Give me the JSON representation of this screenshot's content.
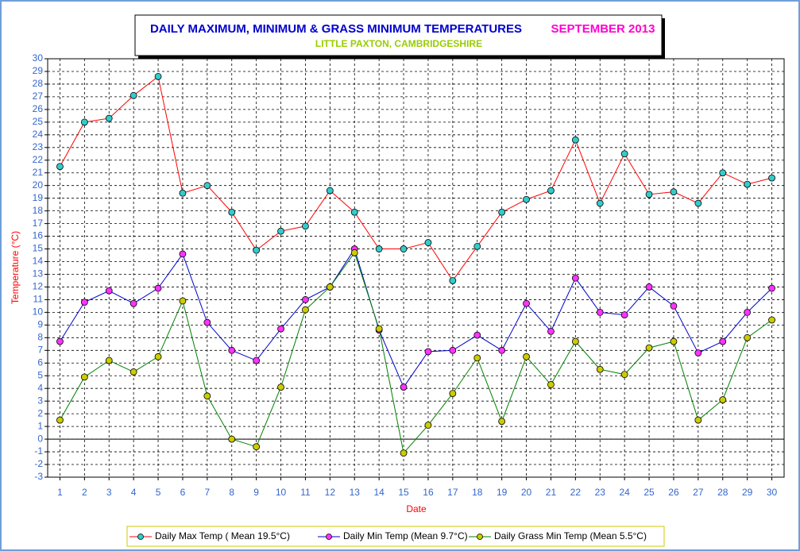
{
  "chart_data": {
    "type": "line",
    "title": "DAILY MAXIMUM, MINIMUM & GRASS MINIMUM TEMPERATURES",
    "period": "SEPTEMBER 2013",
    "subtitle": "LITTLE PAXTON, CAMBRIDGESHIRE",
    "x_label": "Date",
    "y_label": "Temperature (°C)",
    "categories": [
      "1",
      "2",
      "3",
      "4",
      "5",
      "6",
      "7",
      "8",
      "9",
      "10",
      "11",
      "12",
      "13",
      "14",
      "15",
      "16",
      "17",
      "18",
      "19",
      "20",
      "21",
      "22",
      "23",
      "24",
      "25",
      "26",
      "27",
      "28",
      "29",
      "30"
    ],
    "series": [
      {
        "name": "Daily Max Temp ( Mean 19.5°C)",
        "color": "#ff0000",
        "marker_color": "#33cccc",
        "values": [
          21.5,
          25,
          25.3,
          27.1,
          28.6,
          19.4,
          20,
          17.9,
          14.9,
          16.4,
          16.8,
          19.6,
          17.9,
          15,
          15,
          15.5,
          12.5,
          15.2,
          17.9,
          18.9,
          19.6,
          23.6,
          18.6,
          22.5,
          19.3,
          19.5,
          18.6,
          21,
          20.1,
          20.6
        ]
      },
      {
        "name": "Daily Min Temp (Mean 9.7°C)",
        "color": "#0000cc",
        "marker_color": "#ff33ff",
        "values": [
          7.7,
          10.8,
          11.7,
          10.7,
          11.9,
          14.6,
          9.2,
          7,
          6.2,
          8.7,
          11,
          12,
          15,
          8.6,
          4.1,
          6.9,
          7,
          8.2,
          7,
          10.7,
          8.5,
          12.7,
          10,
          9.8,
          12,
          10.5,
          6.8,
          7.7,
          10,
          11.9
        ]
      },
      {
        "name": "Daily Grass Min Temp (Mean 5.5°C)",
        "color": "#008000",
        "marker_color": "#cccc00",
        "values": [
          1.5,
          4.9,
          6.2,
          5.3,
          6.5,
          10.9,
          3.4,
          0,
          -0.6,
          4.1,
          10.2,
          12,
          14.7,
          8.7,
          -1.1,
          1.1,
          3.6,
          6.4,
          1.4,
          6.5,
          4.3,
          7.7,
          5.5,
          5.1,
          7.2,
          7.7,
          1.5,
          3.1,
          8,
          9.4
        ]
      }
    ],
    "ylim": [
      -3,
      30
    ],
    "yticks": [
      -3,
      -2,
      -1,
      0,
      1,
      2,
      3,
      4,
      5,
      6,
      7,
      8,
      9,
      10,
      11,
      12,
      13,
      14,
      15,
      16,
      17,
      18,
      19,
      20,
      21,
      22,
      23,
      24,
      25,
      26,
      27,
      28,
      29,
      30
    ],
    "grid": true,
    "zero_line": true,
    "legend": "bottom"
  }
}
